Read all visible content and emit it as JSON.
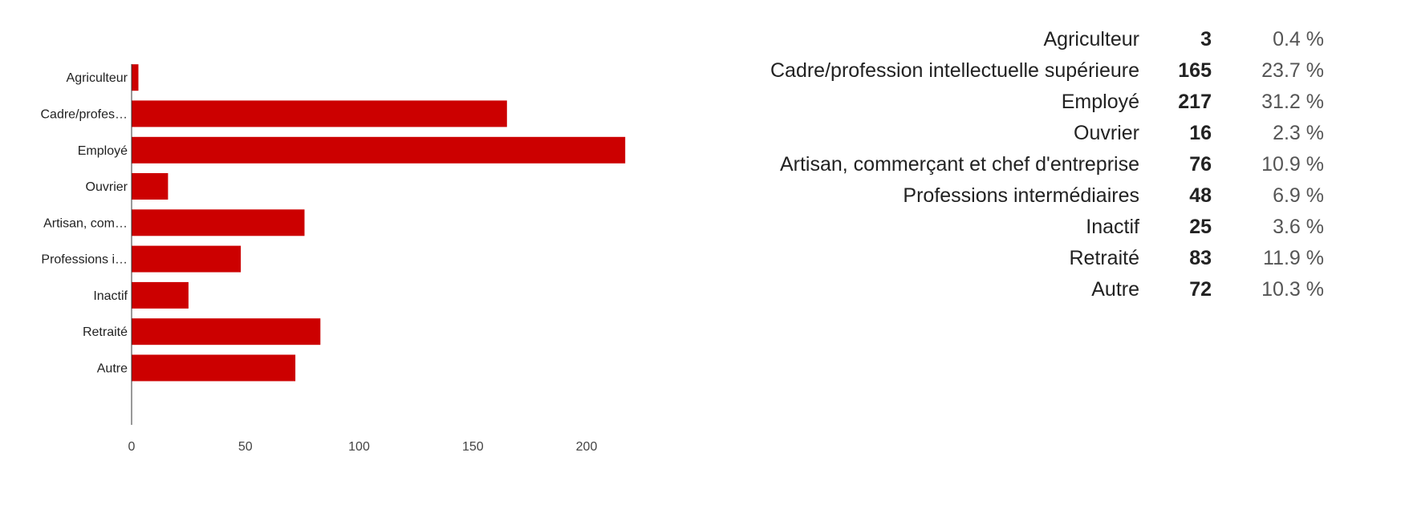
{
  "chart_data": {
    "type": "bar",
    "orientation": "horizontal",
    "categories": [
      "Agriculteur",
      "Cadre/profes…",
      "Employé",
      "Ouvrier",
      "Artisan, com…",
      "Professions i…",
      "Inactif",
      "Retraité",
      "Autre"
    ],
    "values": [
      3,
      165,
      217,
      16,
      76,
      48,
      25,
      83,
      72
    ],
    "xlim": [
      0,
      220
    ],
    "xticks": [
      0,
      50,
      100,
      150,
      200
    ],
    "bar_color": "#cc0000",
    "grid": false
  },
  "summary": {
    "rows": [
      {
        "label": "Agriculteur",
        "count": "3",
        "percent": "0.4 %"
      },
      {
        "label": "Cadre/profession intellectuelle supérieure",
        "count": "165",
        "percent": "23.7 %"
      },
      {
        "label": "Employé",
        "count": "217",
        "percent": "31.2 %"
      },
      {
        "label": "Ouvrier",
        "count": "16",
        "percent": "2.3 %"
      },
      {
        "label": "Artisan, commerçant et chef d'entreprise",
        "count": "76",
        "percent": "10.9 %"
      },
      {
        "label": "Professions intermédiaires",
        "count": "48",
        "percent": "6.9 %"
      },
      {
        "label": "Inactif",
        "count": "25",
        "percent": "3.6 %"
      },
      {
        "label": "Retraité",
        "count": "83",
        "percent": "11.9 %"
      },
      {
        "label": "Autre",
        "count": "72",
        "percent": "10.3 %"
      }
    ]
  }
}
